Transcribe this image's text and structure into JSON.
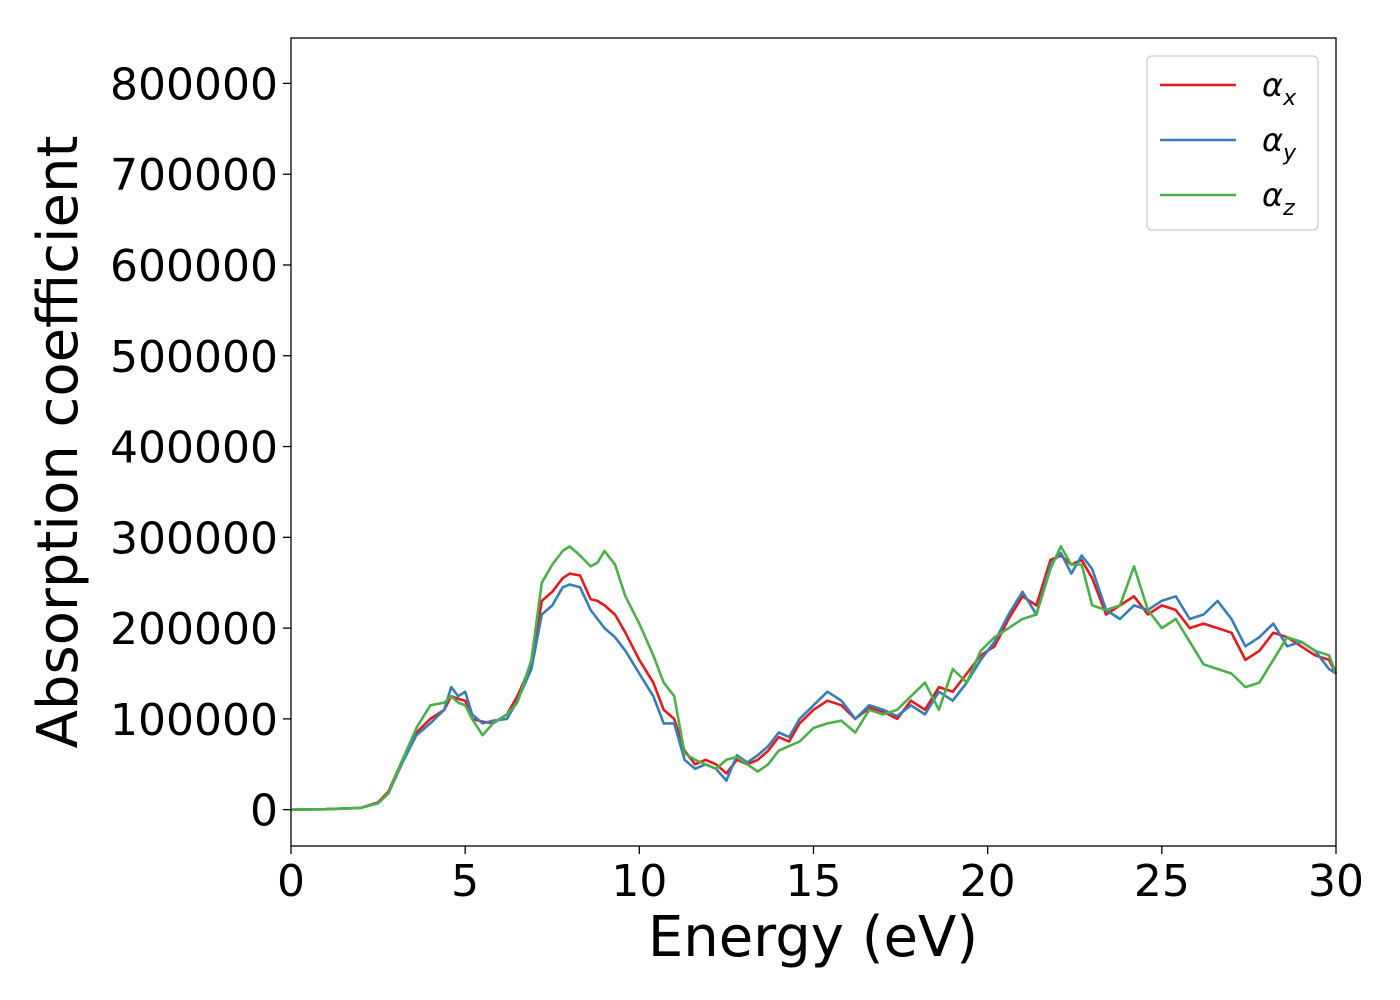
{
  "chart_data": {
    "type": "line",
    "title": "",
    "xlabel": "Energy (eV)",
    "ylabel": "Absorption coefficient",
    "xlim": [
      0,
      30
    ],
    "ylim": [
      -40000,
      850000
    ],
    "xticks": [
      0,
      5,
      10,
      15,
      20,
      25,
      30
    ],
    "yticks": [
      0,
      100000,
      200000,
      300000,
      400000,
      500000,
      600000,
      700000,
      800000
    ],
    "grid": false,
    "legend_position": "top-right",
    "series": [
      {
        "name": "α",
        "subscript": "x",
        "color": "#e41a1c",
        "x": [
          0,
          1,
          2,
          2.5,
          2.8,
          3.2,
          3.6,
          4.0,
          4.4,
          4.6,
          4.8,
          5.0,
          5.2,
          5.5,
          5.8,
          6.2,
          6.5,
          6.9,
          7.2,
          7.5,
          7.8,
          8.0,
          8.3,
          8.6,
          8.8,
          9.0,
          9.3,
          9.6,
          10.0,
          10.4,
          10.7,
          11.0,
          11.3,
          11.6,
          11.9,
          12.2,
          12.5,
          12.8,
          13.1,
          13.4,
          13.7,
          14.0,
          14.3,
          14.6,
          15.0,
          15.4,
          15.8,
          16.2,
          16.6,
          17.0,
          17.4,
          17.8,
          18.2,
          18.6,
          19.0,
          19.4,
          19.8,
          20.2,
          20.6,
          21.0,
          21.4,
          21.8,
          22.1,
          22.4,
          22.7,
          23.0,
          23.4,
          23.8,
          24.2,
          24.6,
          25.0,
          25.4,
          25.8,
          26.2,
          26.6,
          27.0,
          27.4,
          27.8,
          28.2,
          28.6,
          29.0,
          29.4,
          29.8,
          30.0
        ],
        "values": [
          0,
          500,
          2000,
          8000,
          20000,
          55000,
          85000,
          100000,
          110000,
          125000,
          122000,
          120000,
          100000,
          97000,
          95000,
          105000,
          125000,
          160000,
          230000,
          240000,
          255000,
          260000,
          258000,
          232000,
          230000,
          225000,
          215000,
          195000,
          165000,
          140000,
          110000,
          100000,
          65000,
          50000,
          55000,
          50000,
          40000,
          55000,
          50000,
          55000,
          65000,
          80000,
          75000,
          95000,
          110000,
          120000,
          115000,
          100000,
          112000,
          108000,
          100000,
          120000,
          110000,
          135000,
          130000,
          150000,
          170000,
          180000,
          210000,
          235000,
          225000,
          275000,
          280000,
          270000,
          275000,
          255000,
          215000,
          225000,
          235000,
          215000,
          225000,
          220000,
          200000,
          205000,
          200000,
          195000,
          165000,
          175000,
          195000,
          190000,
          180000,
          170000,
          165000,
          150000
        ]
      },
      {
        "name": "α",
        "subscript": "y",
        "color": "#377eb8",
        "x": [
          0,
          1,
          2,
          2.5,
          2.8,
          3.2,
          3.6,
          4.0,
          4.4,
          4.6,
          4.8,
          5.0,
          5.2,
          5.5,
          5.8,
          6.2,
          6.5,
          6.9,
          7.2,
          7.5,
          7.8,
          8.0,
          8.3,
          8.6,
          8.8,
          9.0,
          9.3,
          9.6,
          10.0,
          10.4,
          10.7,
          11.0,
          11.3,
          11.6,
          11.9,
          12.2,
          12.5,
          12.8,
          13.1,
          13.4,
          13.7,
          14.0,
          14.3,
          14.6,
          15.0,
          15.4,
          15.8,
          16.2,
          16.6,
          17.0,
          17.4,
          17.8,
          18.2,
          18.6,
          19.0,
          19.4,
          19.8,
          20.2,
          20.6,
          21.0,
          21.4,
          21.8,
          22.1,
          22.4,
          22.7,
          23.0,
          23.4,
          23.8,
          24.2,
          24.6,
          25.0,
          25.4,
          25.8,
          26.2,
          26.6,
          27.0,
          27.4,
          27.8,
          28.2,
          28.6,
          29.0,
          29.4,
          29.8,
          30.0
        ],
        "values": [
          0,
          500,
          2000,
          7000,
          18000,
          52000,
          82000,
          95000,
          110000,
          135000,
          125000,
          130000,
          105000,
          95000,
          98000,
          100000,
          120000,
          155000,
          215000,
          225000,
          245000,
          248000,
          245000,
          220000,
          210000,
          200000,
          190000,
          175000,
          150000,
          125000,
          95000,
          95000,
          55000,
          45000,
          50000,
          45000,
          32000,
          60000,
          52000,
          60000,
          70000,
          85000,
          80000,
          100000,
          115000,
          130000,
          120000,
          100000,
          115000,
          110000,
          103000,
          115000,
          105000,
          130000,
          120000,
          140000,
          165000,
          185000,
          215000,
          240000,
          215000,
          270000,
          283000,
          260000,
          280000,
          265000,
          220000,
          210000,
          225000,
          220000,
          230000,
          235000,
          210000,
          215000,
          230000,
          210000,
          180000,
          190000,
          205000,
          180000,
          185000,
          175000,
          155000,
          150000
        ]
      },
      {
        "name": "α",
        "subscript": "z",
        "color": "#4daf4a",
        "x": [
          0,
          1,
          2,
          2.5,
          2.8,
          3.2,
          3.6,
          4.0,
          4.4,
          4.6,
          4.8,
          5.0,
          5.2,
          5.5,
          5.8,
          6.2,
          6.5,
          6.9,
          7.2,
          7.5,
          7.8,
          8.0,
          8.3,
          8.6,
          8.8,
          9.0,
          9.3,
          9.6,
          10.0,
          10.4,
          10.7,
          11.0,
          11.3,
          11.6,
          11.9,
          12.2,
          12.5,
          12.8,
          13.1,
          13.4,
          13.7,
          14.0,
          14.3,
          14.6,
          15.0,
          15.4,
          15.8,
          16.2,
          16.6,
          17.0,
          17.4,
          17.8,
          18.2,
          18.6,
          19.0,
          19.4,
          19.8,
          20.2,
          20.6,
          21.0,
          21.4,
          21.8,
          22.1,
          22.4,
          22.7,
          23.0,
          23.4,
          23.8,
          24.2,
          24.6,
          25.0,
          25.4,
          25.8,
          26.2,
          26.6,
          27.0,
          27.4,
          27.8,
          28.2,
          28.6,
          29.0,
          29.4,
          29.8,
          30.0
        ],
        "values": [
          0,
          500,
          2000,
          7000,
          18000,
          55000,
          90000,
          115000,
          118000,
          125000,
          118000,
          115000,
          100000,
          82000,
          95000,
          105000,
          118000,
          165000,
          250000,
          270000,
          285000,
          290000,
          280000,
          268000,
          272000,
          285000,
          270000,
          235000,
          205000,
          170000,
          140000,
          125000,
          62000,
          55000,
          50000,
          45000,
          55000,
          58000,
          50000,
          42000,
          50000,
          65000,
          70000,
          75000,
          90000,
          95000,
          98000,
          85000,
          110000,
          105000,
          110000,
          125000,
          140000,
          110000,
          155000,
          140000,
          175000,
          190000,
          200000,
          210000,
          215000,
          265000,
          290000,
          270000,
          270000,
          225000,
          220000,
          225000,
          268000,
          220000,
          200000,
          210000,
          185000,
          160000,
          155000,
          150000,
          135000,
          140000,
          165000,
          190000,
          185000,
          175000,
          170000,
          150000
        ]
      }
    ]
  }
}
